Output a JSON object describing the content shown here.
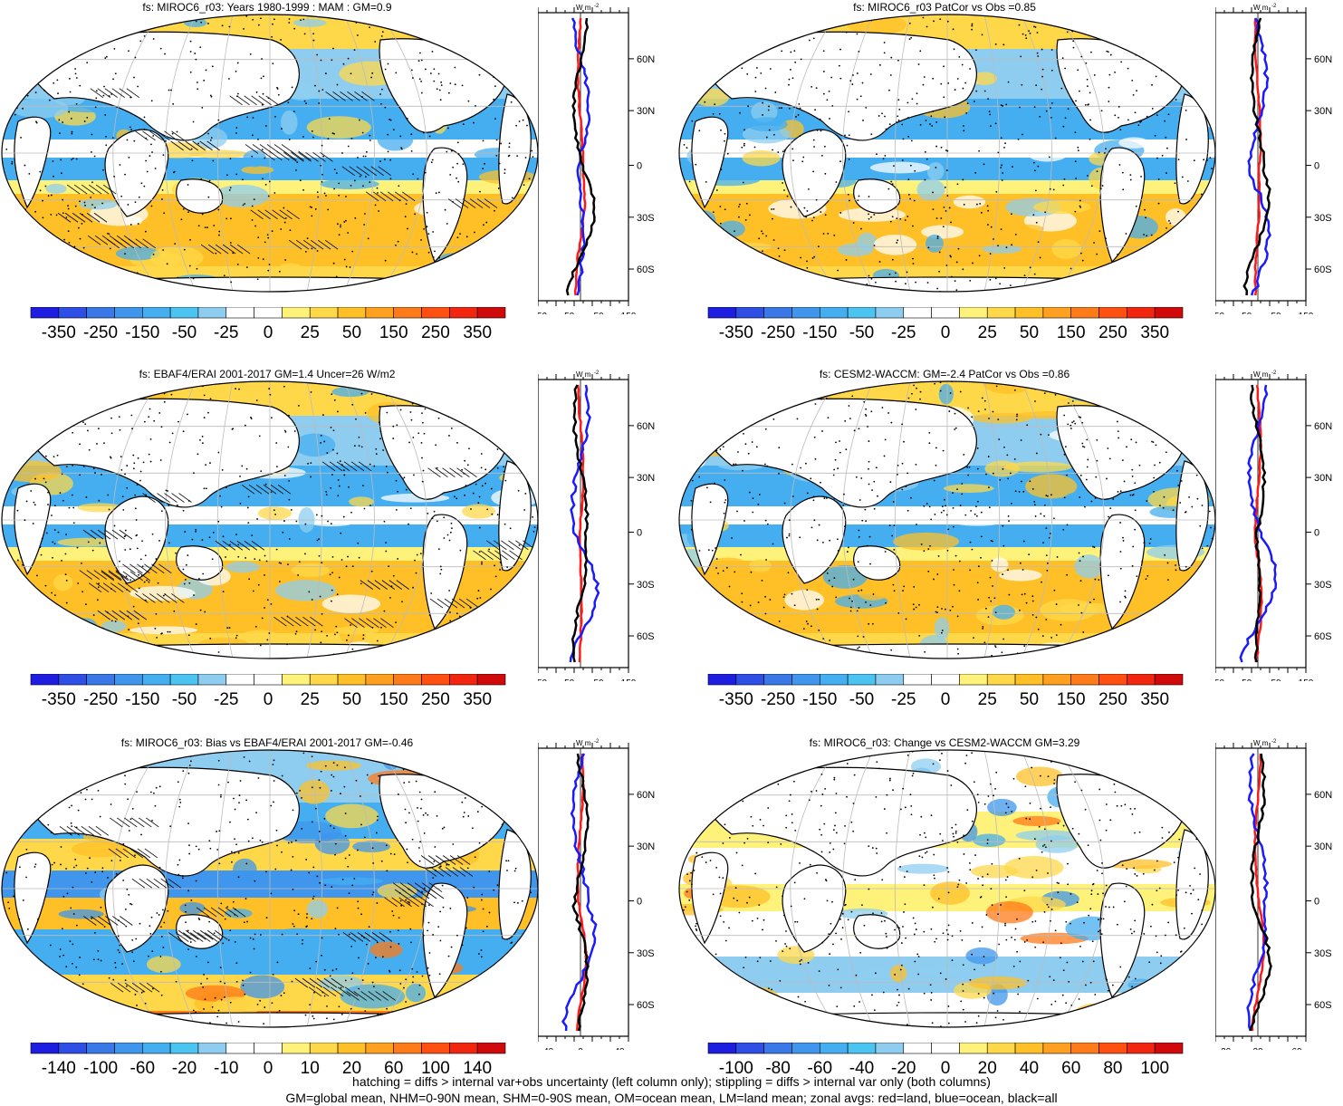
{
  "panels": [
    {
      "title": "fs: MIROC6_r03: Years 1980-1999 : MAM : GM=0.9",
      "colorbar_labels": [
        "-350",
        "-250",
        "-150",
        "-50",
        "-25",
        "0",
        "25",
        "50",
        "150",
        "250",
        "350"
      ],
      "colorbar_palette": "full",
      "zonal_xticks": [
        "-150",
        "-50",
        "50",
        "150"
      ],
      "zonal_lat_labels": [
        "60N",
        "30N",
        "0",
        "30S",
        "60S"
      ],
      "zonal_units": "W m",
      "hatching": true
    },
    {
      "title": "fs: MIROC6_r03 PatCor vs Obs =0.85",
      "colorbar_labels": [
        "-350",
        "-250",
        "-150",
        "-50",
        "-25",
        "0",
        "25",
        "50",
        "150",
        "250",
        "350"
      ],
      "colorbar_palette": "full",
      "zonal_xticks": [
        "-150",
        "-50",
        "50",
        "150"
      ],
      "zonal_lat_labels": [
        "60N",
        "30N",
        "0",
        "30S",
        "60S"
      ],
      "zonal_units": "W m",
      "hatching": false
    },
    {
      "title": "fs: EBAF4/ERAI 2001-2017 GM=1.4 Uncer=26 W/m2",
      "colorbar_labels": [
        "-350",
        "-250",
        "-150",
        "-50",
        "-25",
        "0",
        "25",
        "50",
        "150",
        "250",
        "350"
      ],
      "colorbar_palette": "full",
      "zonal_xticks": [
        "-150",
        "-50",
        "50",
        "150"
      ],
      "zonal_lat_labels": [
        "60N",
        "30N",
        "0",
        "30S",
        "60S"
      ],
      "zonal_units": "W m",
      "hatching": true
    },
    {
      "title": "fs: CESM2-WACCM: GM=-2.4 PatCor vs Obs =0.86",
      "colorbar_labels": [
        "-350",
        "-250",
        "-150",
        "-50",
        "-25",
        "0",
        "25",
        "50",
        "150",
        "250",
        "350"
      ],
      "colorbar_palette": "full",
      "zonal_xticks": [
        "-150",
        "-50",
        "50",
        "150"
      ],
      "zonal_lat_labels": [
        "60N",
        "30N",
        "0",
        "30S",
        "60S"
      ],
      "zonal_units": "W m",
      "hatching": false
    },
    {
      "title": "fs: MIROC6_r03: Bias vs EBAF4/ERAI 2001-2017 GM=-0.46",
      "colorbar_labels": [
        "-140",
        "-100",
        "-60",
        "-20",
        "-10",
        "0",
        "10",
        "20",
        "60",
        "100",
        "140"
      ],
      "colorbar_palette": "diff",
      "zonal_xticks": [
        "-40",
        "0",
        "40"
      ],
      "zonal_lat_labels": [
        "60N",
        "30N",
        "0",
        "30S",
        "60S"
      ],
      "zonal_units": "W m",
      "hatching": true
    },
    {
      "title": "fs: MIROC6_r03: Change vs CESM2-WACCM GM=3.29",
      "colorbar_labels": [
        "-100",
        "-80",
        "-60",
        "-40",
        "-20",
        "0",
        "20",
        "40",
        "60",
        "80",
        "100"
      ],
      "colorbar_palette": "diff",
      "zonal_xticks": [
        "-20",
        "20",
        "60"
      ],
      "zonal_lat_labels": [
        "60N",
        "30N",
        "0",
        "30S",
        "60S"
      ],
      "zonal_units": "W m",
      "hatching": false
    }
  ],
  "colors": {
    "full": [
      "#1e1ee0",
      "#2d4fe6",
      "#3a78e8",
      "#3f96ec",
      "#45aef0",
      "#4bc4f2",
      "#8ecdf0",
      "#ffffff",
      "#ffffff",
      "#fff27a",
      "#ffd84a",
      "#ffc027",
      "#ffa020",
      "#ff7a18",
      "#ff5012",
      "#f2260f",
      "#d00a0a"
    ],
    "diff": [
      "#1e1ee0",
      "#2d4fe6",
      "#3a78e8",
      "#3f96ec",
      "#45aef0",
      "#4bc4f2",
      "#8ecdf0",
      "#ffffff",
      "#ffffff",
      "#fff27a",
      "#ffd84a",
      "#ffc027",
      "#ffa020",
      "#ff7a18",
      "#ff5012",
      "#f2260f",
      "#d00a0a"
    ],
    "land": "#ffffff",
    "ocean_blue": "#3f96ec",
    "ocean_light": "#8ecdf0",
    "ocean_yellow": "#ffc027",
    "zonal_red": "#ff1a1a",
    "zonal_blue": "#1a1aff",
    "zonal_black": "#000000"
  },
  "footer": {
    "line1": "hatching = diffs > internal var+obs uncertainty (left column only); stippling = diffs > internal var only (both columns)",
    "line2": "GM=global mean, NHM=0-90N mean, SHM=0-90S mean, OM=ocean mean, LM=land mean; zonal avgs: red=land, blue=ocean, black=all"
  }
}
